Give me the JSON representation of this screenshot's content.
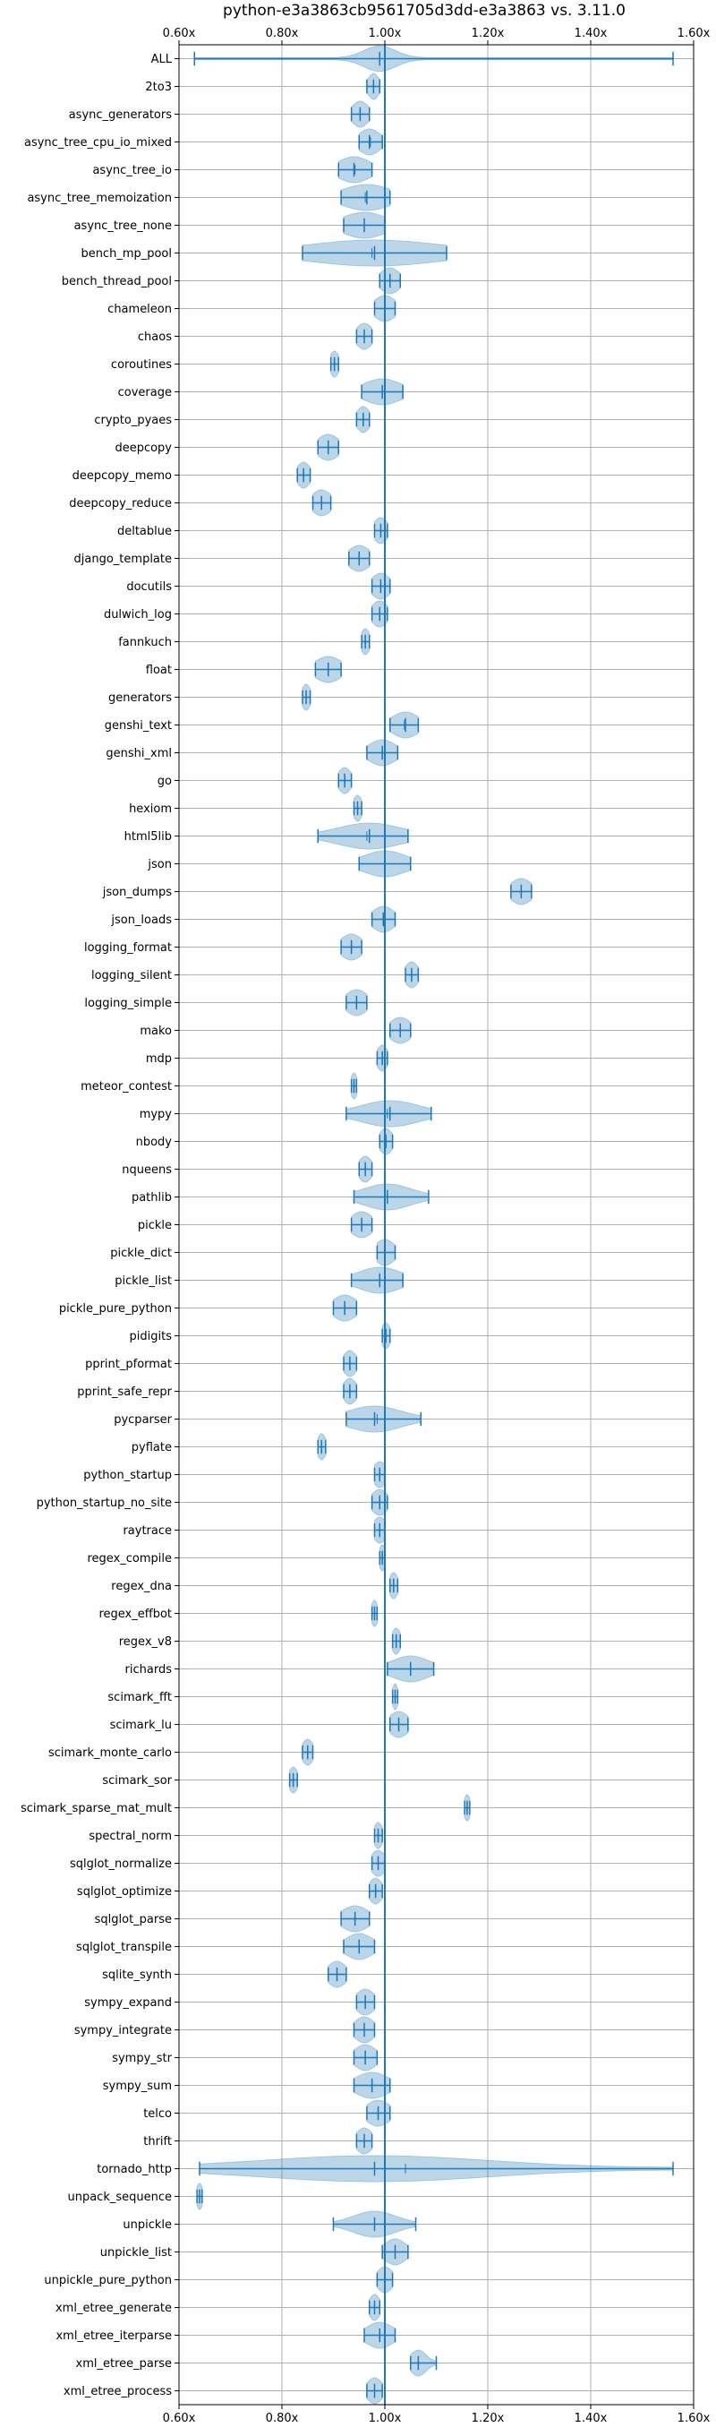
{
  "chart_data": {
    "type": "violin",
    "title": "python-e3a3863cb9561705d3dd-e3a3863 vs. 3.11.0",
    "xlabel": "",
    "ylabel": "",
    "xlim": [
      0.6,
      1.6
    ],
    "xticks": [
      0.6,
      0.8,
      1.0,
      1.2,
      1.4,
      1.6
    ],
    "xtick_labels": [
      "0.60x",
      "0.80x",
      "1.00x",
      "1.20x",
      "1.40x",
      "1.60x"
    ],
    "grid": true,
    "reference_line": 1.0,
    "colors": {
      "violin": "#1f77b4",
      "line": "#1f77b4",
      "grid": "#b0b0b0"
    },
    "benchmarks": [
      {
        "name": "ALL",
        "min": 0.63,
        "max": 1.56,
        "median": 0.99,
        "mean": 0.99,
        "spread": 0.03
      },
      {
        "name": "2to3",
        "min": 0.965,
        "max": 0.99,
        "median": 0.978,
        "mean": 0.978,
        "spread": 0.01
      },
      {
        "name": "async_generators",
        "min": 0.935,
        "max": 0.97,
        "median": 0.952,
        "mean": 0.952,
        "spread": 0.015
      },
      {
        "name": "async_tree_cpu_io_mixed",
        "min": 0.95,
        "max": 0.995,
        "median": 0.97,
        "mean": 0.972,
        "spread": 0.02
      },
      {
        "name": "async_tree_io",
        "min": 0.91,
        "max": 0.975,
        "median": 0.94,
        "mean": 0.942,
        "spread": 0.03
      },
      {
        "name": "async_tree_memoization",
        "min": 0.915,
        "max": 1.01,
        "median": 0.965,
        "mean": 0.962,
        "spread": 0.045
      },
      {
        "name": "async_tree_none",
        "min": 0.92,
        "max": 1.0,
        "median": 0.96,
        "mean": 0.96,
        "spread": 0.04
      },
      {
        "name": "bench_mp_pool",
        "min": 0.84,
        "max": 1.12,
        "median": 0.98,
        "mean": 0.975,
        "spread": 0.13
      },
      {
        "name": "bench_thread_pool",
        "min": 0.99,
        "max": 1.03,
        "median": 1.01,
        "mean": 1.01,
        "spread": 0.018
      },
      {
        "name": "chameleon",
        "min": 0.98,
        "max": 1.02,
        "median": 1.0,
        "mean": 1.0,
        "spread": 0.02
      },
      {
        "name": "chaos",
        "min": 0.945,
        "max": 0.975,
        "median": 0.96,
        "mean": 0.96,
        "spread": 0.015
      },
      {
        "name": "coroutines",
        "min": 0.895,
        "max": 0.91,
        "median": 0.902,
        "mean": 0.902,
        "spread": 0.008
      },
      {
        "name": "coverage",
        "min": 0.955,
        "max": 1.035,
        "median": 0.995,
        "mean": 0.995,
        "spread": 0.035
      },
      {
        "name": "crypto_pyaes",
        "min": 0.945,
        "max": 0.97,
        "median": 0.958,
        "mean": 0.958,
        "spread": 0.012
      },
      {
        "name": "deepcopy",
        "min": 0.87,
        "max": 0.91,
        "median": 0.89,
        "mean": 0.89,
        "spread": 0.02
      },
      {
        "name": "deepcopy_memo",
        "min": 0.83,
        "max": 0.855,
        "median": 0.842,
        "mean": 0.842,
        "spread": 0.012
      },
      {
        "name": "deepcopy_reduce",
        "min": 0.86,
        "max": 0.895,
        "median": 0.877,
        "mean": 0.877,
        "spread": 0.018
      },
      {
        "name": "deltablue",
        "min": 0.98,
        "max": 1.005,
        "median": 0.992,
        "mean": 0.992,
        "spread": 0.013
      },
      {
        "name": "django_template",
        "min": 0.93,
        "max": 0.97,
        "median": 0.95,
        "mean": 0.95,
        "spread": 0.02
      },
      {
        "name": "docutils",
        "min": 0.975,
        "max": 1.01,
        "median": 0.992,
        "mean": 0.992,
        "spread": 0.017
      },
      {
        "name": "dulwich_log",
        "min": 0.975,
        "max": 1.005,
        "median": 0.99,
        "mean": 0.99,
        "spread": 0.015
      },
      {
        "name": "fannkuch",
        "min": 0.955,
        "max": 0.97,
        "median": 0.962,
        "mean": 0.962,
        "spread": 0.008
      },
      {
        "name": "float",
        "min": 0.865,
        "max": 0.915,
        "median": 0.89,
        "mean": 0.89,
        "spread": 0.025
      },
      {
        "name": "generators",
        "min": 0.84,
        "max": 0.855,
        "median": 0.847,
        "mean": 0.847,
        "spread": 0.008
      },
      {
        "name": "genshi_text",
        "min": 1.01,
        "max": 1.065,
        "median": 1.04,
        "mean": 1.038,
        "spread": 0.025
      },
      {
        "name": "genshi_xml",
        "min": 0.965,
        "max": 1.025,
        "median": 0.995,
        "mean": 0.995,
        "spread": 0.025
      },
      {
        "name": "go",
        "min": 0.91,
        "max": 0.935,
        "median": 0.922,
        "mean": 0.922,
        "spread": 0.012
      },
      {
        "name": "hexiom",
        "min": 0.94,
        "max": 0.955,
        "median": 0.947,
        "mean": 0.947,
        "spread": 0.008
      },
      {
        "name": "html5lib",
        "min": 0.87,
        "max": 1.045,
        "median": 0.97,
        "mean": 0.965,
        "spread": 0.06
      },
      {
        "name": "json",
        "min": 0.95,
        "max": 1.05,
        "median": 1.0,
        "mean": 1.0,
        "spread": 0.04
      },
      {
        "name": "json_dumps",
        "min": 1.245,
        "max": 1.285,
        "median": 1.265,
        "mean": 1.265,
        "spread": 0.02
      },
      {
        "name": "json_loads",
        "min": 0.975,
        "max": 1.02,
        "median": 0.997,
        "mean": 0.997,
        "spread": 0.02
      },
      {
        "name": "logging_format",
        "min": 0.915,
        "max": 0.955,
        "median": 0.935,
        "mean": 0.935,
        "spread": 0.02
      },
      {
        "name": "logging_silent",
        "min": 1.04,
        "max": 1.065,
        "median": 1.052,
        "mean": 1.052,
        "spread": 0.012
      },
      {
        "name": "logging_simple",
        "min": 0.925,
        "max": 0.965,
        "median": 0.945,
        "mean": 0.945,
        "spread": 0.02
      },
      {
        "name": "mako",
        "min": 1.01,
        "max": 1.05,
        "median": 1.03,
        "mean": 1.03,
        "spread": 0.02
      },
      {
        "name": "mdp",
        "min": 0.985,
        "max": 1.005,
        "median": 0.995,
        "mean": 0.995,
        "spread": 0.01
      },
      {
        "name": "meteor_contest",
        "min": 0.935,
        "max": 0.945,
        "median": 0.94,
        "mean": 0.94,
        "spread": 0.006
      },
      {
        "name": "mypy",
        "min": 0.925,
        "max": 1.09,
        "median": 1.01,
        "mean": 1.005,
        "spread": 0.055
      },
      {
        "name": "nbody",
        "min": 0.99,
        "max": 1.015,
        "median": 1.002,
        "mean": 1.002,
        "spread": 0.012
      },
      {
        "name": "nqueens",
        "min": 0.95,
        "max": 0.975,
        "median": 0.962,
        "mean": 0.962,
        "spread": 0.012
      },
      {
        "name": "pathlib",
        "min": 0.94,
        "max": 1.085,
        "median": 1.005,
        "mean": 1.0,
        "spread": 0.045
      },
      {
        "name": "pickle",
        "min": 0.935,
        "max": 0.975,
        "median": 0.955,
        "mean": 0.955,
        "spread": 0.02
      },
      {
        "name": "pickle_dict",
        "min": 0.985,
        "max": 1.02,
        "median": 1.0,
        "mean": 1.0,
        "spread": 0.018
      },
      {
        "name": "pickle_list",
        "min": 0.935,
        "max": 1.035,
        "median": 0.99,
        "mean": 0.99,
        "spread": 0.04
      },
      {
        "name": "pickle_pure_python",
        "min": 0.9,
        "max": 0.945,
        "median": 0.922,
        "mean": 0.922,
        "spread": 0.022
      },
      {
        "name": "pidigits",
        "min": 0.995,
        "max": 1.01,
        "median": 1.002,
        "mean": 1.002,
        "spread": 0.008
      },
      {
        "name": "pprint_pformat",
        "min": 0.92,
        "max": 0.945,
        "median": 0.932,
        "mean": 0.932,
        "spread": 0.012
      },
      {
        "name": "pprint_safe_repr",
        "min": 0.92,
        "max": 0.945,
        "median": 0.932,
        "mean": 0.932,
        "spread": 0.012
      },
      {
        "name": "pycparser",
        "min": 0.925,
        "max": 1.07,
        "median": 0.98,
        "mean": 0.985,
        "spread": 0.05
      },
      {
        "name": "pyflate",
        "min": 0.87,
        "max": 0.885,
        "median": 0.877,
        "mean": 0.877,
        "spread": 0.008
      },
      {
        "name": "python_startup",
        "min": 0.98,
        "max": 1.0,
        "median": 0.99,
        "mean": 0.99,
        "spread": 0.012
      },
      {
        "name": "python_startup_no_site",
        "min": 0.975,
        "max": 1.005,
        "median": 0.99,
        "mean": 0.99,
        "spread": 0.015
      },
      {
        "name": "raytrace",
        "min": 0.98,
        "max": 1.0,
        "median": 0.99,
        "mean": 0.99,
        "spread": 0.012
      },
      {
        "name": "regex_compile",
        "min": 0.99,
        "max": 1.0,
        "median": 0.995,
        "mean": 0.995,
        "spread": 0.006
      },
      {
        "name": "regex_dna",
        "min": 1.01,
        "max": 1.025,
        "median": 1.017,
        "mean": 1.017,
        "spread": 0.008
      },
      {
        "name": "regex_effbot",
        "min": 0.975,
        "max": 0.985,
        "median": 0.98,
        "mean": 0.98,
        "spread": 0.006
      },
      {
        "name": "regex_v8",
        "min": 1.015,
        "max": 1.03,
        "median": 1.022,
        "mean": 1.022,
        "spread": 0.008
      },
      {
        "name": "richards",
        "min": 1.005,
        "max": 1.095,
        "median": 1.05,
        "mean": 1.05,
        "spread": 0.035
      },
      {
        "name": "scimark_fft",
        "min": 1.015,
        "max": 1.025,
        "median": 1.02,
        "mean": 1.02,
        "spread": 0.005
      },
      {
        "name": "scimark_lu",
        "min": 1.01,
        "max": 1.045,
        "median": 1.027,
        "mean": 1.027,
        "spread": 0.018
      },
      {
        "name": "scimark_monte_carlo",
        "min": 0.84,
        "max": 0.86,
        "median": 0.85,
        "mean": 0.85,
        "spread": 0.01
      },
      {
        "name": "scimark_sor",
        "min": 0.815,
        "max": 0.83,
        "median": 0.822,
        "mean": 0.822,
        "spread": 0.008
      },
      {
        "name": "scimark_sparse_mat_mult",
        "min": 1.155,
        "max": 1.165,
        "median": 1.16,
        "mean": 1.16,
        "spread": 0.006
      },
      {
        "name": "spectral_norm",
        "min": 0.98,
        "max": 0.995,
        "median": 0.987,
        "mean": 0.987,
        "spread": 0.008
      },
      {
        "name": "sqlglot_normalize",
        "min": 0.975,
        "max": 1.0,
        "median": 0.987,
        "mean": 0.987,
        "spread": 0.013
      },
      {
        "name": "sqlglot_optimize",
        "min": 0.97,
        "max": 0.995,
        "median": 0.982,
        "mean": 0.982,
        "spread": 0.012
      },
      {
        "name": "sqlglot_parse",
        "min": 0.915,
        "max": 0.97,
        "median": 0.942,
        "mean": 0.942,
        "spread": 0.025
      },
      {
        "name": "sqlglot_transpile",
        "min": 0.92,
        "max": 0.98,
        "median": 0.95,
        "mean": 0.95,
        "spread": 0.025
      },
      {
        "name": "sqlite_synth",
        "min": 0.89,
        "max": 0.925,
        "median": 0.907,
        "mean": 0.907,
        "spread": 0.017
      },
      {
        "name": "sympy_expand",
        "min": 0.945,
        "max": 0.98,
        "median": 0.962,
        "mean": 0.962,
        "spread": 0.017
      },
      {
        "name": "sympy_integrate",
        "min": 0.94,
        "max": 0.98,
        "median": 0.96,
        "mean": 0.96,
        "spread": 0.018
      },
      {
        "name": "sympy_str",
        "min": 0.94,
        "max": 0.985,
        "median": 0.962,
        "mean": 0.962,
        "spread": 0.02
      },
      {
        "name": "sympy_sum",
        "min": 0.94,
        "max": 1.01,
        "median": 0.975,
        "mean": 0.975,
        "spread": 0.03
      },
      {
        "name": "telco",
        "min": 0.965,
        "max": 1.01,
        "median": 0.987,
        "mean": 0.987,
        "spread": 0.022
      },
      {
        "name": "thrift",
        "min": 0.945,
        "max": 0.975,
        "median": 0.96,
        "mean": 0.96,
        "spread": 0.015
      },
      {
        "name": "tornado_http",
        "min": 0.64,
        "max": 1.56,
        "median": 0.98,
        "mean": 1.04,
        "spread": 0.22
      },
      {
        "name": "unpack_sequence",
        "min": 0.635,
        "max": 0.645,
        "median": 0.64,
        "mean": 0.64,
        "spread": 0.006
      },
      {
        "name": "unpickle",
        "min": 0.9,
        "max": 1.06,
        "median": 0.98,
        "mean": 0.98,
        "spread": 0.04
      },
      {
        "name": "unpickle_list",
        "min": 0.995,
        "max": 1.045,
        "median": 1.02,
        "mean": 1.02,
        "spread": 0.02
      },
      {
        "name": "unpickle_pure_python",
        "min": 0.985,
        "max": 1.015,
        "median": 1.0,
        "mean": 1.0,
        "spread": 0.014
      },
      {
        "name": "xml_etree_generate",
        "min": 0.97,
        "max": 0.99,
        "median": 0.98,
        "mean": 0.98,
        "spread": 0.01
      },
      {
        "name": "xml_etree_iterparse",
        "min": 0.96,
        "max": 1.02,
        "median": 0.99,
        "mean": 0.99,
        "spread": 0.025
      },
      {
        "name": "xml_etree_parse",
        "min": 1.05,
        "max": 1.1,
        "median": 1.065,
        "mean": 1.065,
        "spread": 0.015
      },
      {
        "name": "xml_etree_process",
        "min": 0.965,
        "max": 0.995,
        "median": 0.98,
        "mean": 0.98,
        "spread": 0.014
      }
    ]
  }
}
